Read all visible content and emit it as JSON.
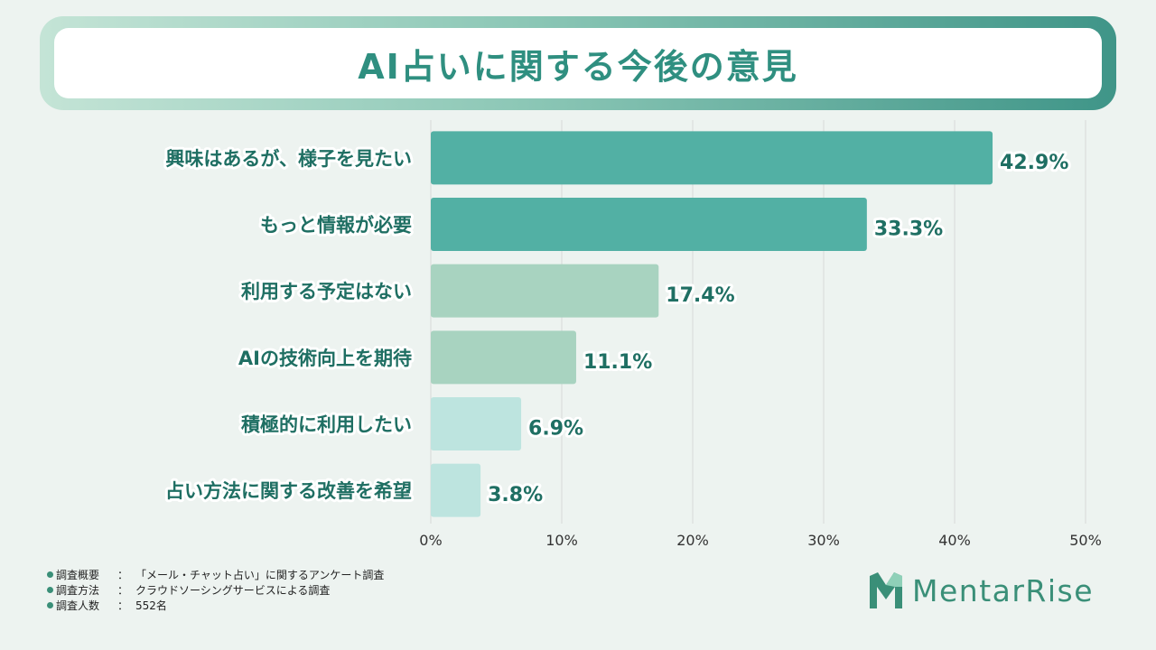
{
  "title": "AI占いに関する今後の意見",
  "chart_data": {
    "type": "bar",
    "orientation": "horizontal",
    "title": "AI占いに関する今後の意見",
    "categories": [
      "興味はあるが、様子を見たい",
      "もっと情報が必要",
      "利用する予定はない",
      "AIの技術向上を期待",
      "積極的に利用したい",
      "占い方法に関する改善を希望"
    ],
    "values": [
      42.9,
      33.3,
      17.4,
      11.1,
      6.9,
      3.8
    ],
    "value_labels": [
      "42.9%",
      "33.3%",
      "17.4%",
      "11.1%",
      "6.9%",
      "3.8%"
    ],
    "bar_colors": [
      "#52b0a4",
      "#52b0a4",
      "#a8d3c0",
      "#a8d3c0",
      "#bde4df",
      "#bde4df"
    ],
    "xlim": [
      0,
      50
    ],
    "x_ticks": [
      "0%",
      "10%",
      "20%",
      "30%",
      "40%",
      "50%"
    ],
    "grid": true
  },
  "notes": [
    {
      "key": "調査概要",
      "sep": "：",
      "value": "「メール・チャット占い」に関するアンケート調査"
    },
    {
      "key": "調査方法",
      "sep": "：",
      "value": "クラウドソーシングサービスによる調査"
    },
    {
      "key": "調査人数",
      "sep": "：",
      "value": "552名"
    }
  ],
  "logo": {
    "text": "MentarRise",
    "icon": "mentarrise-m-logo-icon",
    "color": "#3a8f78"
  }
}
